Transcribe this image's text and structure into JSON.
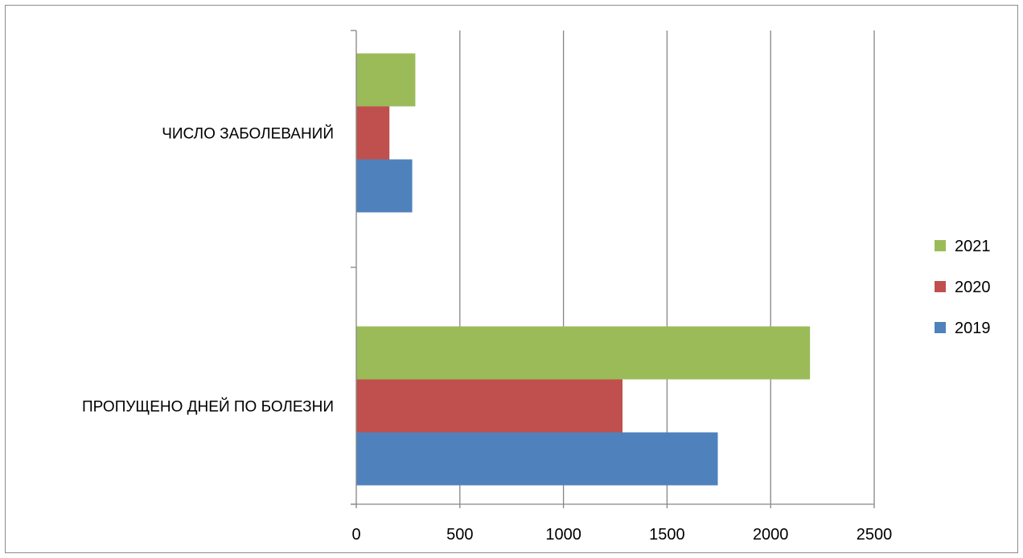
{
  "chart_data": {
    "type": "bar",
    "orientation": "horizontal",
    "categories": [
      "ЧИСЛО ЗАБОЛЕВАНИЙ",
      "ПРОПУЩЕНО ДНЕЙ ПО БОЛЕЗНИ"
    ],
    "series": [
      {
        "name": "2019",
        "color": "#4f81bd",
        "values": [
          270,
          1745
        ]
      },
      {
        "name": "2020",
        "color": "#c0504d",
        "values": [
          160,
          1285
        ]
      },
      {
        "name": "2021",
        "color": "#9bbb59",
        "values": [
          285,
          2190
        ]
      }
    ],
    "xlim": [
      0,
      2500
    ],
    "xticks": [
      "0",
      "500",
      "1000",
      "1500",
      "2000",
      "2500"
    ],
    "grid": true,
    "legend_position": "right"
  }
}
